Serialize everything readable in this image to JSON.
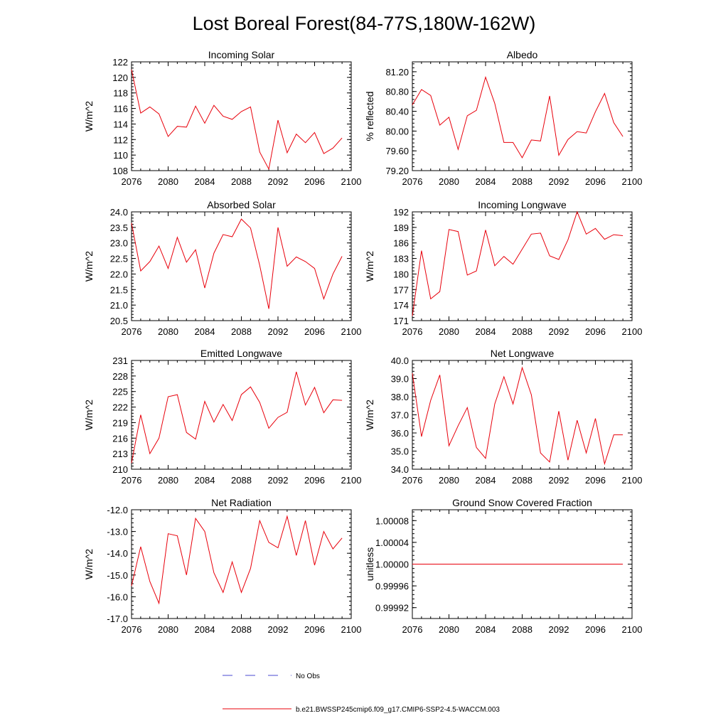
{
  "figure": {
    "title": "Lost Boreal Forest(84-77S,180W-162W)",
    "colors": {
      "model_line": "#e8000b",
      "obs_line": "#4a4ad0",
      "axis": "#000000"
    }
  },
  "legend": {
    "obs_label": "No Obs",
    "model_label": "b.e21.BWSSP245cmip6.f09_g17.CMIP6-SSP2-4.5-WACCM.003"
  },
  "chart_data": [
    {
      "type": "line",
      "title": "Incoming Solar",
      "xlabel": "",
      "ylabel": "W/m^2",
      "xlim": [
        2076,
        2100
      ],
      "ylim": [
        108,
        122
      ],
      "xticks": [
        2076,
        2080,
        2084,
        2088,
        2092,
        2096,
        2100
      ],
      "xtick_labels": [
        "2076",
        "2080",
        "2084",
        "2088",
        "2092",
        "2096",
        "2100"
      ],
      "yticks": [
        108,
        110,
        112,
        114,
        116,
        118,
        120,
        122
      ],
      "ytick_labels": [
        "108",
        "110",
        "112",
        "114",
        "116",
        "118",
        "120",
        "122"
      ],
      "x": [
        2076,
        2077,
        2078,
        2079,
        2080,
        2081,
        2082,
        2083,
        2084,
        2085,
        2086,
        2087,
        2088,
        2089,
        2090,
        2091,
        2092,
        2093,
        2094,
        2095,
        2096,
        2097,
        2098,
        2099
      ],
      "series": [
        {
          "name": "b.e21.BWSSP245cmip6.f09_g17.CMIP6-SSP2-4.5-WACCM.003",
          "values": [
            121.0,
            115.4,
            116.2,
            115.3,
            112.4,
            113.7,
            113.6,
            116.3,
            114.1,
            116.4,
            115.0,
            114.6,
            115.6,
            116.2,
            110.4,
            108.2,
            114.5,
            110.3,
            112.7,
            111.6,
            112.9,
            110.2,
            110.9,
            112.2
          ]
        }
      ]
    },
    {
      "type": "line",
      "title": "Albedo",
      "xlabel": "",
      "ylabel": "% reflected",
      "xlim": [
        2076,
        2100
      ],
      "ylim": [
        79.2,
        81.4
      ],
      "xticks": [
        2076,
        2080,
        2084,
        2088,
        2092,
        2096,
        2100
      ],
      "xtick_labels": [
        "2076",
        "2080",
        "2084",
        "2088",
        "2092",
        "2096",
        "2100"
      ],
      "yticks": [
        79.2,
        79.6,
        80.0,
        80.4,
        80.8,
        81.2
      ],
      "ytick_labels": [
        "79.20",
        "79.60",
        "80.00",
        "80.40",
        "80.80",
        "81.20"
      ],
      "x": [
        2076,
        2077,
        2078,
        2079,
        2080,
        2081,
        2082,
        2083,
        2084,
        2085,
        2086,
        2087,
        2088,
        2089,
        2090,
        2091,
        2092,
        2093,
        2094,
        2095,
        2096,
        2097,
        2098,
        2099
      ],
      "series": [
        {
          "name": "b.e21.BWSSP245cmip6.f09_g17.CMIP6-SSP2-4.5-WACCM.003",
          "values": [
            80.53,
            80.84,
            80.72,
            80.12,
            80.28,
            79.63,
            80.31,
            80.42,
            81.09,
            80.56,
            79.77,
            79.77,
            79.46,
            79.82,
            79.8,
            80.71,
            79.51,
            79.83,
            79.99,
            79.96,
            80.39,
            80.76,
            80.17,
            79.89
          ]
        }
      ]
    },
    {
      "type": "line",
      "title": "Absorbed Solar",
      "xlabel": "",
      "ylabel": "W/m^2",
      "xlim": [
        2076,
        2100
      ],
      "ylim": [
        20.5,
        24.0
      ],
      "xticks": [
        2076,
        2080,
        2084,
        2088,
        2092,
        2096,
        2100
      ],
      "xtick_labels": [
        "2076",
        "2080",
        "2084",
        "2088",
        "2092",
        "2096",
        "2100"
      ],
      "yticks": [
        20.5,
        21.0,
        21.5,
        22.0,
        22.5,
        23.0,
        23.5,
        24.0
      ],
      "ytick_labels": [
        "20.5",
        "21.0",
        "21.5",
        "22.0",
        "22.5",
        "23.0",
        "23.5",
        "24.0"
      ],
      "x": [
        2076,
        2077,
        2078,
        2079,
        2080,
        2081,
        2082,
        2083,
        2084,
        2085,
        2086,
        2087,
        2088,
        2089,
        2090,
        2091,
        2092,
        2093,
        2094,
        2095,
        2096,
        2097,
        2098,
        2099
      ],
      "series": [
        {
          "name": "b.e21.BWSSP245cmip6.f09_g17.CMIP6-SSP2-4.5-WACCM.003",
          "values": [
            23.64,
            22.1,
            22.4,
            22.9,
            22.18,
            23.18,
            22.38,
            22.78,
            21.55,
            22.67,
            23.27,
            23.2,
            23.77,
            23.48,
            22.28,
            20.88,
            23.5,
            22.25,
            22.55,
            22.4,
            22.18,
            21.2,
            22.0,
            22.57
          ]
        }
      ]
    },
    {
      "type": "line",
      "title": "Incoming Longwave",
      "xlabel": "",
      "ylabel": "W/m^2",
      "xlim": [
        2076,
        2100
      ],
      "ylim": [
        171,
        192
      ],
      "xticks": [
        2076,
        2080,
        2084,
        2088,
        2092,
        2096,
        2100
      ],
      "xtick_labels": [
        "2076",
        "2080",
        "2084",
        "2088",
        "2092",
        "2096",
        "2100"
      ],
      "yticks": [
        171,
        174,
        177,
        180,
        183,
        186,
        189,
        192
      ],
      "ytick_labels": [
        "171",
        "174",
        "177",
        "180",
        "183",
        "186",
        "189",
        "192"
      ],
      "x": [
        2076,
        2077,
        2078,
        2079,
        2080,
        2081,
        2082,
        2083,
        2084,
        2085,
        2086,
        2087,
        2088,
        2089,
        2090,
        2091,
        2092,
        2093,
        2094,
        2095,
        2096,
        2097,
        2098,
        2099
      ],
      "series": [
        {
          "name": "b.e21.BWSSP245cmip6.f09_g17.CMIP6-SSP2-4.5-WACCM.003",
          "values": [
            171.9,
            184.5,
            175.2,
            176.6,
            188.6,
            188.2,
            179.8,
            180.6,
            188.5,
            181.6,
            183.4,
            181.9,
            184.8,
            187.7,
            187.9,
            183.5,
            182.8,
            186.6,
            192.0,
            187.7,
            188.8,
            186.7,
            187.6,
            187.4
          ]
        }
      ]
    },
    {
      "type": "line",
      "title": "Emitted Longwave",
      "xlabel": "",
      "ylabel": "W/m^2",
      "xlim": [
        2076,
        2100
      ],
      "ylim": [
        210,
        231
      ],
      "xticks": [
        2076,
        2080,
        2084,
        2088,
        2092,
        2096,
        2100
      ],
      "xtick_labels": [
        "2076",
        "2080",
        "2084",
        "2088",
        "2092",
        "2096",
        "2100"
      ],
      "yticks": [
        210,
        213,
        216,
        219,
        222,
        225,
        228,
        231
      ],
      "ytick_labels": [
        "210",
        "213",
        "216",
        "219",
        "222",
        "225",
        "228",
        "231"
      ],
      "x": [
        2076,
        2077,
        2078,
        2079,
        2080,
        2081,
        2082,
        2083,
        2084,
        2085,
        2086,
        2087,
        2088,
        2089,
        2090,
        2091,
        2092,
        2093,
        2094,
        2095,
        2096,
        2097,
        2098,
        2099
      ],
      "series": [
        {
          "name": "b.e21.BWSSP245cmip6.f09_g17.CMIP6-SSP2-4.5-WACCM.003",
          "values": [
            211.2,
            220.5,
            213.0,
            216.0,
            224.0,
            224.4,
            217.1,
            215.8,
            223.1,
            219.1,
            222.5,
            219.4,
            224.4,
            225.9,
            222.9,
            217.9,
            220.0,
            221.0,
            228.8,
            222.4,
            225.8,
            220.9,
            223.4,
            223.3
          ]
        }
      ]
    },
    {
      "type": "line",
      "title": "Net Longwave",
      "xlabel": "",
      "ylabel": "W/m^2",
      "xlim": [
        2076,
        2100
      ],
      "ylim": [
        34.0,
        40.0
      ],
      "xticks": [
        2076,
        2080,
        2084,
        2088,
        2092,
        2096,
        2100
      ],
      "xtick_labels": [
        "2076",
        "2080",
        "2084",
        "2088",
        "2092",
        "2096",
        "2100"
      ],
      "yticks": [
        34.0,
        35.0,
        36.0,
        37.0,
        38.0,
        39.0,
        40.0
      ],
      "ytick_labels": [
        "34.0",
        "35.0",
        "36.0",
        "37.0",
        "38.0",
        "39.0",
        "40.0"
      ],
      "x": [
        2076,
        2077,
        2078,
        2079,
        2080,
        2081,
        2082,
        2083,
        2084,
        2085,
        2086,
        2087,
        2088,
        2089,
        2090,
        2091,
        2092,
        2093,
        2094,
        2095,
        2096,
        2097,
        2098,
        2099
      ],
      "series": [
        {
          "name": "b.e21.BWSSP245cmip6.f09_g17.CMIP6-SSP2-4.5-WACCM.003",
          "values": [
            39.3,
            35.8,
            37.8,
            39.2,
            35.3,
            36.4,
            37.4,
            35.2,
            34.6,
            37.6,
            39.1,
            37.6,
            39.6,
            38.1,
            34.9,
            34.4,
            37.2,
            34.5,
            36.7,
            34.9,
            36.8,
            34.3,
            35.9,
            35.9
          ]
        }
      ]
    },
    {
      "type": "line",
      "title": "Net Radiation",
      "xlabel": "",
      "ylabel": "W/m^2",
      "xlim": [
        2076,
        2100
      ],
      "ylim": [
        -17.0,
        -12.0
      ],
      "xticks": [
        2076,
        2080,
        2084,
        2088,
        2092,
        2096,
        2100
      ],
      "xtick_labels": [
        "2076",
        "2080",
        "2084",
        "2088",
        "2092",
        "2096",
        "2100"
      ],
      "yticks": [
        -17.0,
        -16.0,
        -15.0,
        -14.0,
        -13.0,
        -12.0
      ],
      "ytick_labels": [
        "-17.0",
        "-16.0",
        "-15.0",
        "-14.0",
        "-13.0",
        "-12.0"
      ],
      "x": [
        2076,
        2077,
        2078,
        2079,
        2080,
        2081,
        2082,
        2083,
        2084,
        2085,
        2086,
        2087,
        2088,
        2089,
        2090,
        2091,
        2092,
        2093,
        2094,
        2095,
        2096,
        2097,
        2098,
        2099
      ],
      "series": [
        {
          "name": "b.e21.BWSSP245cmip6.f09_g17.CMIP6-SSP2-4.5-WACCM.003",
          "values": [
            -15.5,
            -13.7,
            -15.3,
            -16.3,
            -13.1,
            -13.2,
            -15.0,
            -12.4,
            -13.0,
            -14.9,
            -15.8,
            -14.4,
            -15.8,
            -14.7,
            -12.5,
            -13.5,
            -13.75,
            -12.3,
            -14.1,
            -12.5,
            -14.55,
            -13.0,
            -13.8,
            -13.3
          ]
        }
      ]
    },
    {
      "type": "line",
      "title": "Ground Snow Covered Fraction",
      "xlabel": "",
      "ylabel": "unitless",
      "xlim": [
        2076,
        2100
      ],
      "ylim": [
        0.9999,
        1.0001
      ],
      "xticks": [
        2076,
        2080,
        2084,
        2088,
        2092,
        2096,
        2100
      ],
      "xtick_labels": [
        "2076",
        "2080",
        "2084",
        "2088",
        "2092",
        "2096",
        "2100"
      ],
      "yticks": [
        0.99992,
        0.99996,
        1.0,
        1.00004,
        1.00008
      ],
      "ytick_labels": [
        "0.99992",
        "0.99996",
        "1.00000",
        "1.00004",
        "1.00008"
      ],
      "x": [
        2076,
        2077,
        2078,
        2079,
        2080,
        2081,
        2082,
        2083,
        2084,
        2085,
        2086,
        2087,
        2088,
        2089,
        2090,
        2091,
        2092,
        2093,
        2094,
        2095,
        2096,
        2097,
        2098,
        2099
      ],
      "series": [
        {
          "name": "b.e21.BWSSP245cmip6.f09_g17.CMIP6-SSP2-4.5-WACCM.003",
          "values": [
            1.0,
            1.0,
            1.0,
            1.0,
            1.0,
            1.0,
            1.0,
            1.0,
            1.0,
            1.0,
            1.0,
            1.0,
            1.0,
            1.0,
            1.0,
            1.0,
            1.0,
            1.0,
            1.0,
            1.0,
            1.0,
            1.0,
            1.0,
            1.0
          ]
        }
      ]
    }
  ]
}
